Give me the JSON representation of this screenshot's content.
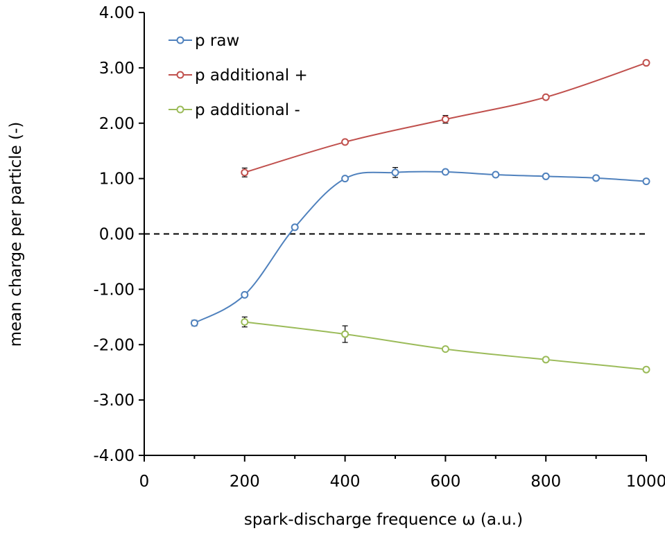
{
  "chart_data": {
    "type": "line",
    "title": "",
    "xlabel": "spark-discharge frequence ω (a.u.)",
    "ylabel": "mean charge per particle (-)",
    "xlim": [
      0,
      1000
    ],
    "ylim": [
      -4,
      4
    ],
    "x_ticks": [
      0,
      200,
      400,
      600,
      800,
      1000
    ],
    "x_tick_labels": [
      "0",
      "200",
      "400",
      "600",
      "800",
      "1000"
    ],
    "y_ticks": [
      -4,
      -3,
      -2,
      -1,
      0,
      1,
      2,
      3,
      4
    ],
    "y_tick_labels": [
      "-4.00",
      "-3.00",
      "-2.00",
      "-1.00",
      "0.00",
      "1.00",
      "2.00",
      "3.00",
      "4.00"
    ],
    "grid": false,
    "legend_position": "top-left",
    "reference_line": {
      "y": 0,
      "style": "dashed"
    },
    "series": [
      {
        "name": "p raw",
        "color": "#4f81bd",
        "x": [
          100,
          200,
          300,
          400,
          500,
          600,
          700,
          800,
          900,
          1000
        ],
        "y": [
          -1.61,
          -1.1,
          0.12,
          1.0,
          1.11,
          1.12,
          1.07,
          1.04,
          1.01,
          0.95
        ],
        "err": [
          0.05,
          0.03,
          0.03,
          0.03,
          0.09,
          0.03,
          0.02,
          0.02,
          0.02,
          0.04
        ]
      },
      {
        "name": "p additional +",
        "color": "#c0504d",
        "x": [
          200,
          400,
          600,
          800,
          1000
        ],
        "y": [
          1.11,
          1.66,
          2.07,
          2.47,
          3.09
        ],
        "err": [
          0.08,
          0.03,
          0.07,
          0.03,
          0.03
        ]
      },
      {
        "name": "p additional -",
        "color": "#9bbb59",
        "x": [
          200,
          400,
          600,
          800,
          1000
        ],
        "y": [
          -1.59,
          -1.81,
          -2.08,
          -2.27,
          -2.45
        ],
        "err": [
          0.09,
          0.15,
          0.03,
          0.03,
          0.03
        ]
      }
    ]
  }
}
